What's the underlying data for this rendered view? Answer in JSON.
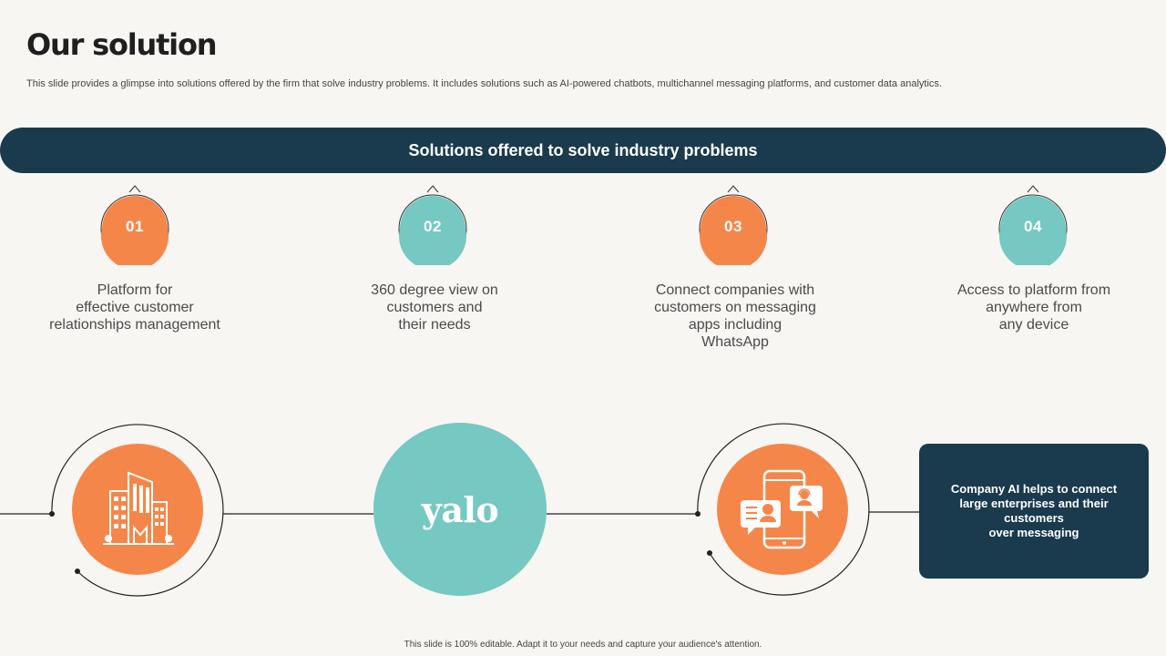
{
  "header": {
    "title": "Our solution",
    "subtitle": "This slide provides a glimpse into solutions offered by the firm that solve industry problems. It includes solutions such as AI-powered chatbots, multichannel messaging platforms, and customer data analytics."
  },
  "banner": {
    "label": "Solutions offered to solve industry problems"
  },
  "steps": [
    {
      "number": "01",
      "text": "Platform for\neffective customer\nrelationships management",
      "color": "#f5864a"
    },
    {
      "number": "02",
      "text": "360 degree view on\ncustomers and\ntheir needs",
      "color": "#76c8c2"
    },
    {
      "number": "03",
      "text": "Connect companies with\ncustomers on messaging\napps including\nWhatsApp",
      "color": "#f5864a"
    },
    {
      "number": "04",
      "text": "Access to platform from\nanywhere from\nany device",
      "color": "#76c8c2"
    }
  ],
  "timeline": {
    "logo_text": "yalo",
    "icons": [
      "buildings-icon",
      "mobile-chat-icon"
    ],
    "info": "Company AI helps to connect\nlarge enterprises and their\ncustomers\nover messaging"
  },
  "colors": {
    "navy": "#1a3a4d",
    "orange": "#f5864a",
    "teal": "#76c8c2",
    "background": "#f7f6f2"
  },
  "footer": {
    "note": "This slide is 100% editable.  Adapt it to your needs and capture your audience's attention."
  }
}
